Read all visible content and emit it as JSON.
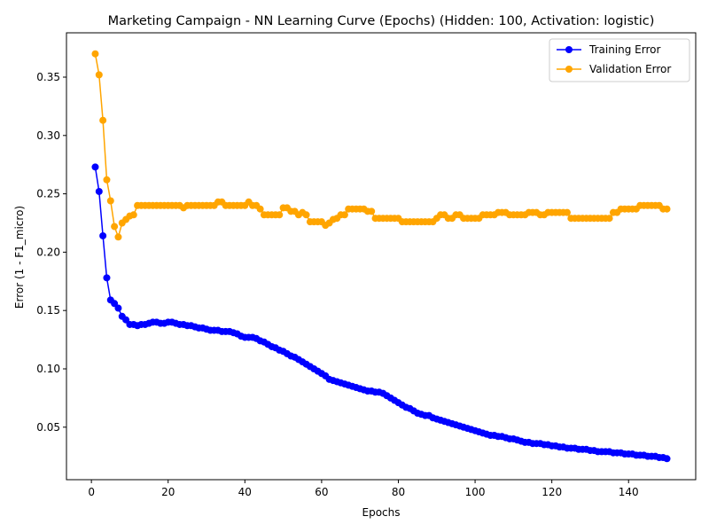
{
  "chart_data": {
    "type": "line",
    "title": "Marketing Campaign - NN Learning Curve (Epochs) (Hidden: 100, Activation: logistic)",
    "xlabel": "Epochs",
    "ylabel": "Error (1 - F1_micro)",
    "xlim": [
      -6.5,
      157.5
    ],
    "ylim": [
      0.005,
      0.388
    ],
    "x_ticks": [
      0,
      20,
      40,
      60,
      80,
      100,
      120,
      140
    ],
    "y_ticks": [
      0.05,
      0.1,
      0.15,
      0.2,
      0.25,
      0.3,
      0.35
    ],
    "x_tick_labels": [
      "0",
      "20",
      "40",
      "60",
      "80",
      "100",
      "120",
      "140"
    ],
    "y_tick_labels": [
      "0.05",
      "0.10",
      "0.15",
      "0.20",
      "0.25",
      "0.30",
      "0.35"
    ],
    "grid": false,
    "legend_position": "top-right",
    "x": [
      1,
      2,
      3,
      4,
      5,
      6,
      7,
      8,
      9,
      10,
      11,
      12,
      13,
      14,
      15,
      16,
      17,
      18,
      19,
      20,
      21,
      22,
      23,
      24,
      25,
      26,
      27,
      28,
      29,
      30,
      31,
      32,
      33,
      34,
      35,
      36,
      37,
      38,
      39,
      40,
      41,
      42,
      43,
      44,
      45,
      46,
      47,
      48,
      49,
      50,
      51,
      52,
      53,
      54,
      55,
      56,
      57,
      58,
      59,
      60,
      61,
      62,
      63,
      64,
      65,
      66,
      67,
      68,
      69,
      70,
      71,
      72,
      73,
      74,
      75,
      76,
      77,
      78,
      79,
      80,
      81,
      82,
      83,
      84,
      85,
      86,
      87,
      88,
      89,
      90,
      91,
      92,
      93,
      94,
      95,
      96,
      97,
      98,
      99,
      100,
      101,
      102,
      103,
      104,
      105,
      106,
      107,
      108,
      109,
      110,
      111,
      112,
      113,
      114,
      115,
      116,
      117,
      118,
      119,
      120,
      121,
      122,
      123,
      124,
      125,
      126,
      127,
      128,
      129,
      130,
      131,
      132,
      133,
      134,
      135,
      136,
      137,
      138,
      139,
      140,
      141,
      142,
      143,
      144,
      145,
      146,
      147,
      148,
      149,
      150
    ],
    "series": [
      {
        "name": "Training Error",
        "color": "#0000ff",
        "values": [
          0.273,
          0.252,
          0.214,
          0.178,
          0.159,
          0.156,
          0.152,
          0.145,
          0.142,
          0.138,
          0.138,
          0.137,
          0.138,
          0.138,
          0.139,
          0.14,
          0.14,
          0.139,
          0.139,
          0.14,
          0.14,
          0.139,
          0.138,
          0.138,
          0.137,
          0.137,
          0.136,
          0.135,
          0.135,
          0.134,
          0.133,
          0.133,
          0.133,
          0.132,
          0.132,
          0.132,
          0.131,
          0.13,
          0.128,
          0.127,
          0.127,
          0.127,
          0.126,
          0.124,
          0.123,
          0.121,
          0.119,
          0.118,
          0.116,
          0.115,
          0.113,
          0.111,
          0.11,
          0.108,
          0.106,
          0.104,
          0.102,
          0.1,
          0.098,
          0.096,
          0.094,
          0.091,
          0.09,
          0.089,
          0.088,
          0.087,
          0.086,
          0.085,
          0.084,
          0.083,
          0.082,
          0.081,
          0.081,
          0.08,
          0.08,
          0.079,
          0.077,
          0.075,
          0.073,
          0.071,
          0.069,
          0.067,
          0.066,
          0.064,
          0.062,
          0.061,
          0.06,
          0.06,
          0.058,
          0.057,
          0.056,
          0.055,
          0.054,
          0.053,
          0.052,
          0.051,
          0.05,
          0.049,
          0.048,
          0.047,
          0.046,
          0.045,
          0.044,
          0.043,
          0.043,
          0.042,
          0.042,
          0.041,
          0.04,
          0.04,
          0.039,
          0.038,
          0.037,
          0.037,
          0.036,
          0.036,
          0.036,
          0.035,
          0.035,
          0.034,
          0.034,
          0.033,
          0.033,
          0.032,
          0.032,
          0.032,
          0.031,
          0.031,
          0.031,
          0.03,
          0.03,
          0.029,
          0.029,
          0.029,
          0.029,
          0.028,
          0.028,
          0.028,
          0.027,
          0.027,
          0.027,
          0.026,
          0.026,
          0.026,
          0.025,
          0.025,
          0.025,
          0.024,
          0.024,
          0.023
        ]
      },
      {
        "name": "Validation Error",
        "color": "#ffa500",
        "values": [
          0.37,
          0.352,
          0.313,
          0.262,
          0.244,
          0.222,
          0.213,
          0.225,
          0.228,
          0.231,
          0.232,
          0.24,
          0.24,
          0.24,
          0.24,
          0.24,
          0.24,
          0.24,
          0.24,
          0.24,
          0.24,
          0.24,
          0.24,
          0.238,
          0.24,
          0.24,
          0.24,
          0.24,
          0.24,
          0.24,
          0.24,
          0.24,
          0.243,
          0.243,
          0.24,
          0.24,
          0.24,
          0.24,
          0.24,
          0.24,
          0.243,
          0.24,
          0.24,
          0.237,
          0.232,
          0.232,
          0.232,
          0.232,
          0.232,
          0.238,
          0.238,
          0.235,
          0.235,
          0.232,
          0.234,
          0.232,
          0.226,
          0.226,
          0.226,
          0.226,
          0.223,
          0.225,
          0.228,
          0.229,
          0.232,
          0.232,
          0.237,
          0.237,
          0.237,
          0.237,
          0.237,
          0.235,
          0.235,
          0.229,
          0.229,
          0.229,
          0.229,
          0.229,
          0.229,
          0.229,
          0.226,
          0.226,
          0.226,
          0.226,
          0.226,
          0.226,
          0.226,
          0.226,
          0.226,
          0.229,
          0.232,
          0.232,
          0.229,
          0.229,
          0.232,
          0.232,
          0.229,
          0.229,
          0.229,
          0.229,
          0.229,
          0.232,
          0.232,
          0.232,
          0.232,
          0.234,
          0.234,
          0.234,
          0.232,
          0.232,
          0.232,
          0.232,
          0.232,
          0.234,
          0.234,
          0.234,
          0.232,
          0.232,
          0.234,
          0.234,
          0.234,
          0.234,
          0.234,
          0.234,
          0.229,
          0.229,
          0.229,
          0.229,
          0.229,
          0.229,
          0.229,
          0.229,
          0.229,
          0.229,
          0.229,
          0.234,
          0.234,
          0.237,
          0.237,
          0.237,
          0.237,
          0.237,
          0.24,
          0.24,
          0.24,
          0.24,
          0.24,
          0.24,
          0.237,
          0.237
        ]
      }
    ]
  }
}
